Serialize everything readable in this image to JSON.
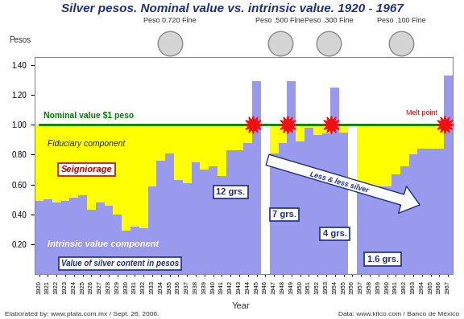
{
  "chart_data": {
    "type": "bar",
    "title": "Silver pesos. Nominal value vs. intrinsic value. 1920 - 1967",
    "x_label": "Year",
    "y_label": "Pesos",
    "stacked": true,
    "grid": false,
    "categories": [
      "1920",
      "1921",
      "1922",
      "1923",
      "1924",
      "1925",
      "1926",
      "1927",
      "1928",
      "1929",
      "1930",
      "1931",
      "1932",
      "1933",
      "1934",
      "1935",
      "1936",
      "1937",
      "1938",
      "1939",
      "1940",
      "1941",
      "1942",
      "1943",
      "1944",
      "1945",
      "1946",
      "1947",
      "1948",
      "1949",
      "1950",
      "1951",
      "1952",
      "1953",
      "1954",
      "1955",
      "1956",
      "1957",
      "1958",
      "1959",
      "1960",
      "1961",
      "1962",
      "1963",
      "1964",
      "1965",
      "1966",
      "1967"
    ],
    "series": [
      {
        "name": "Intrinsic value component",
        "type": "bar",
        "color": "#9999ee",
        "values": [
          0.49,
          0.5,
          0.48,
          0.49,
          0.51,
          0.53,
          0.43,
          0.48,
          0.46,
          0.4,
          0.29,
          0.32,
          0.31,
          0.59,
          0.76,
          0.81,
          0.63,
          0.61,
          0.75,
          0.7,
          0.72,
          0.66,
          0.83,
          0.83,
          0.88,
          1.29,
          null,
          0.81,
          0.88,
          1.29,
          0.89,
          0.98,
          0.93,
          0.94,
          1.25,
          0.95,
          null,
          0.58,
          0.58,
          0.59,
          0.59,
          0.67,
          0.72,
          0.8,
          0.84,
          0.84,
          0.84,
          1.33
        ]
      },
      {
        "name": "Fiduciary component",
        "type": "bar",
        "color": "#ffff00",
        "values": [
          0.51,
          0.5,
          0.52,
          0.51,
          0.49,
          0.47,
          0.57,
          0.52,
          0.54,
          0.6,
          0.71,
          0.68,
          0.69,
          0.41,
          0.24,
          0.19,
          0.37,
          0.39,
          0.25,
          0.3,
          0.28,
          0.34,
          0.17,
          0.17,
          0.12,
          0,
          null,
          0.19,
          0.12,
          0,
          0.11,
          0.02,
          0.07,
          0.06,
          0,
          0.05,
          null,
          0.42,
          0.42,
          0.41,
          0.41,
          0.33,
          0.28,
          0.2,
          0.16,
          0.16,
          0.16,
          0
        ]
      },
      {
        "name": "Nominal value $1 peso",
        "type": "line",
        "color": "#008000",
        "values": [
          1.0,
          1.0,
          1.0,
          1.0,
          1.0,
          1.0,
          1.0,
          1.0,
          1.0,
          1.0,
          1.0,
          1.0,
          1.0,
          1.0,
          1.0,
          1.0,
          1.0,
          1.0,
          1.0,
          1.0,
          1.0,
          1.0,
          1.0,
          1.0,
          1.0,
          1.0,
          1.0,
          1.0,
          1.0,
          1.0,
          1.0,
          1.0,
          1.0,
          1.0,
          1.0,
          1.0,
          1.0,
          1.0,
          1.0,
          1.0,
          1.0,
          1.0,
          1.0,
          1.0,
          1.0,
          1.0,
          1.0,
          1.0
        ]
      }
    ],
    "ylim": [
      0,
      1.45
    ],
    "yticks": [
      {
        "value": 0.2,
        "label": "0.20"
      },
      {
        "value": 0.4,
        "label": "0.40"
      },
      {
        "value": 0.6,
        "label": "0.60"
      },
      {
        "value": 0.8,
        "label": "0.80"
      },
      {
        "value": 1.0,
        "label": "1.00"
      },
      {
        "value": 1.2,
        "label": "1.20"
      },
      {
        "value": 1.4,
        "label": "1.40"
      }
    ],
    "annotations": [
      "Peso 0.720 Fine",
      "Peso .500 Fine",
      "Peso .300 Fine",
      "Peso .100 Fine",
      "Seigniorage",
      "Value of silver content in pesos",
      "Less & less silver",
      "12 grs.",
      "7 grs.",
      "4 grs.",
      "1.6 grs.",
      "Melt point",
      "Elaborated by: www.plata.com.mx / Sept. 26, 2006.",
      "Data: www.kitco.com / Banco de México"
    ]
  }
}
